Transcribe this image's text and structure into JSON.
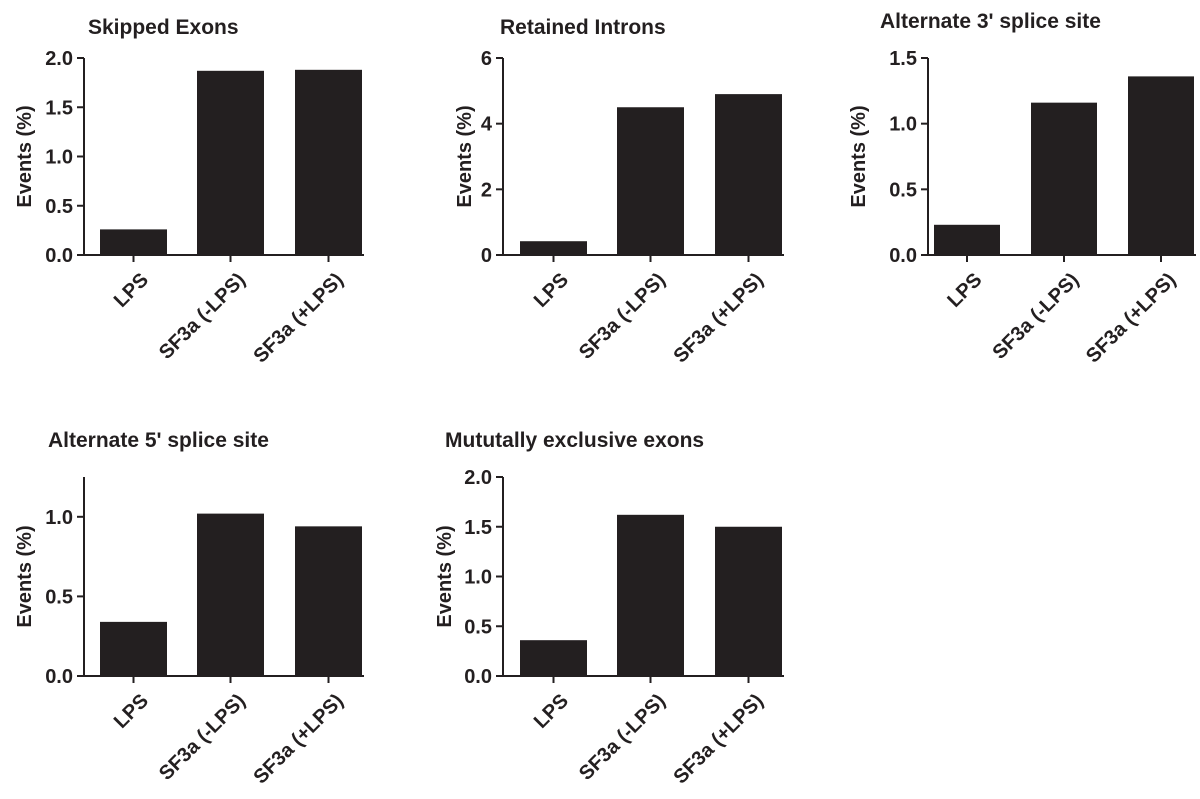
{
  "chart_data": [
    {
      "type": "bar",
      "title": "Skipped Exons",
      "ylabel": "Events (%)",
      "categories": [
        "LPS",
        "SF3a (-LPS)",
        "SF3a (+LPS)"
      ],
      "values": [
        0.26,
        1.87,
        1.88
      ],
      "ylim": [
        0,
        2.0
      ],
      "yticks": [
        "0.0",
        "0.5",
        "1.0",
        "1.5",
        "2.0"
      ],
      "grid": false
    },
    {
      "type": "bar",
      "title": "Retained Introns",
      "ylabel": "Events (%)",
      "categories": [
        "LPS",
        "SF3a (-LPS)",
        "SF3a (+LPS)"
      ],
      "values": [
        0.42,
        4.5,
        4.9
      ],
      "ylim": [
        0,
        6
      ],
      "yticks": [
        "0",
        "2",
        "4",
        "6"
      ],
      "grid": false
    },
    {
      "type": "bar",
      "title": "Alternate 3' splice site",
      "ylabel": "Events (%)",
      "categories": [
        "LPS",
        "SF3a (-LPS)",
        "SF3a (+LPS)"
      ],
      "values": [
        0.23,
        1.16,
        1.36
      ],
      "ylim": [
        0,
        1.5
      ],
      "yticks": [
        "0.0",
        "0.5",
        "1.0",
        "1.5"
      ],
      "grid": false
    },
    {
      "type": "bar",
      "title": "Alternate 5' splice site",
      "ylabel": "Events (%)",
      "categories": [
        "LPS",
        "SF3a (-LPS)",
        "SF3a (+LPS)"
      ],
      "values": [
        0.34,
        1.02,
        0.94
      ],
      "ylim": [
        0,
        1.25
      ],
      "yticks": [
        "0.0",
        "0.5",
        "1.0"
      ],
      "grid": false
    },
    {
      "type": "bar",
      "title": "Mututally exclusive exons",
      "ylabel": "Events (%)",
      "categories": [
        "LPS",
        "SF3a (-LPS)",
        "SF3a (+LPS)"
      ],
      "values": [
        0.36,
        1.62,
        1.5
      ],
      "ylim": [
        0,
        2.0
      ],
      "yticks": [
        "0.0",
        "0.5",
        "1.0",
        "1.5",
        "2.0"
      ],
      "grid": false
    }
  ],
  "colors": {
    "bar": "#231f20",
    "axis": "#231f20",
    "background": "#ffffff"
  }
}
